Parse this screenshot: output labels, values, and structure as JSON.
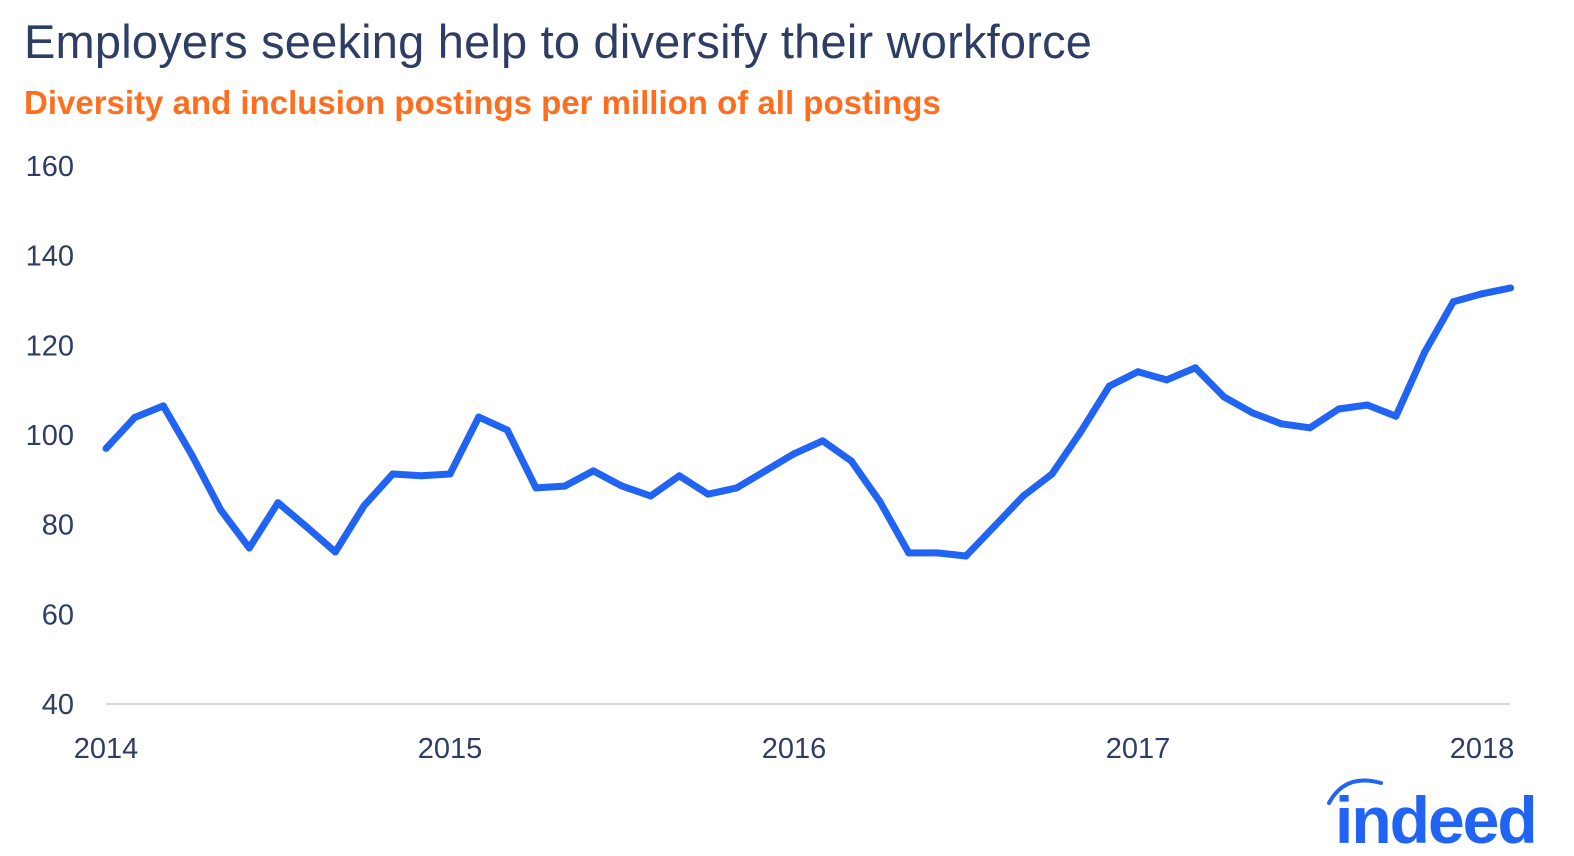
{
  "chart_data": {
    "type": "line",
    "title": "Employers seeking help to diversify their workforce",
    "subtitle": "Diversity and inclusion postings per million of all postings",
    "xlabel": "",
    "ylabel": "",
    "ylim": [
      40,
      160
    ],
    "yticks": [
      40,
      60,
      80,
      100,
      120,
      140,
      160
    ],
    "xticks": [
      "2014",
      "2015",
      "2016",
      "2017",
      "2018"
    ],
    "grid": false,
    "x_start": "2014-01",
    "frequency": "monthly",
    "series": [
      {
        "color": "#2164f3",
        "values": [
          97,
          103.9,
          106.5,
          95.5,
          83.3,
          74.8,
          84.9,
          79.5,
          73.9,
          84.2,
          91.3,
          90.9,
          91.3,
          104,
          101.1,
          88.2,
          88.6,
          92,
          88.6,
          86.4,
          90.9,
          86.8,
          88.2,
          92,
          95.8,
          98.7,
          94.2,
          85.1,
          73.7,
          73.7,
          73,
          79.7,
          86.4,
          91.3,
          100.7,
          110.9,
          114.1,
          112.3,
          115,
          108.5,
          104.9,
          102.5,
          101.6,
          105.8,
          106.7,
          104.2,
          118.5,
          129.7,
          131.5,
          132.8
        ]
      }
    ]
  },
  "logo": {
    "text": "indeed",
    "color": "#2164f3"
  }
}
